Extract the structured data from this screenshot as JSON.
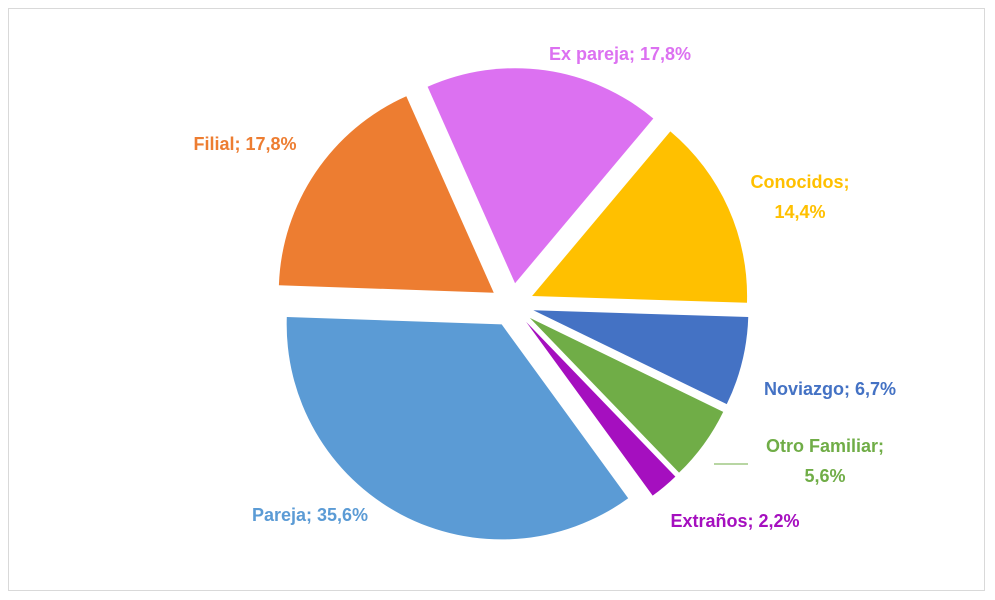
{
  "chart_data": {
    "type": "pie",
    "values": [
      17.8,
      14.4,
      6.7,
      5.6,
      2.2,
      35.6,
      17.8
    ],
    "value_labels": [
      [
        "Ex pareja; 17,8%"
      ],
      [
        "Conocidos;",
        "14,4%"
      ],
      [
        "Noviazgo; 6,7%"
      ],
      [
        "Otro Familiar;",
        "5,6%"
      ],
      [
        "Extraños; 2,2%"
      ],
      [
        "Pareja; 35,6%"
      ],
      [
        "Filial; 17,8%"
      ]
    ],
    "colors": [
      "#dc71f1",
      "#ffc000",
      "#4472c4",
      "#70ad47",
      "#a50fbf",
      "#5b9bd5",
      "#ed7d31"
    ],
    "exploded": true
  }
}
